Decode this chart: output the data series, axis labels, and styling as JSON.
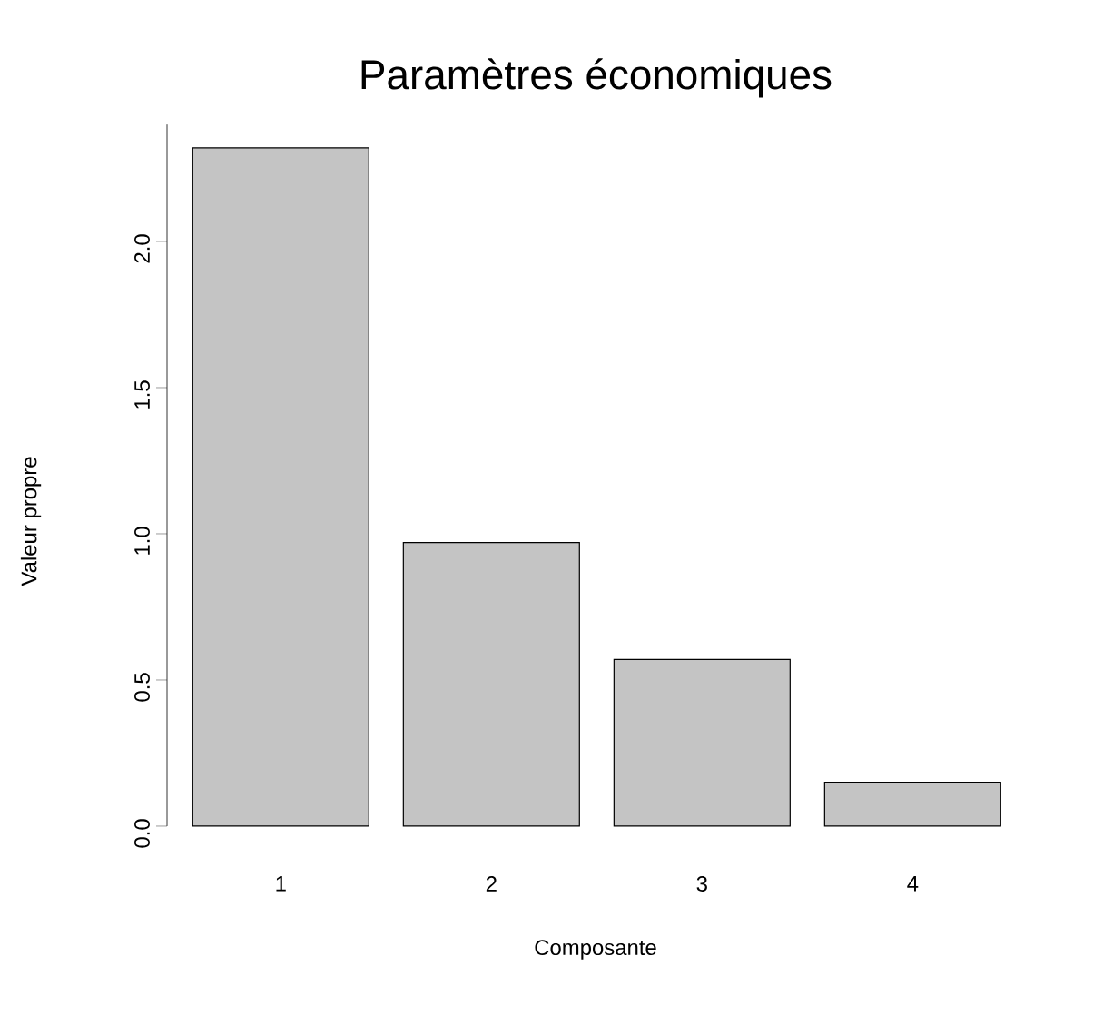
{
  "chart_data": {
    "type": "bar",
    "title": "Paramètres économiques",
    "xlabel": "Composante",
    "ylabel": "Valeur propre",
    "categories": [
      "1",
      "2",
      "3",
      "4"
    ],
    "values": [
      2.32,
      0.97,
      0.57,
      0.15
    ],
    "color": "#c4c4c4",
    "ylim": [
      0,
      2.4
    ],
    "yticks": [
      {
        "value": 0,
        "label": "0.0"
      },
      {
        "value": 0.5,
        "label": "0.5"
      },
      {
        "value": 1,
        "label": "1.0"
      },
      {
        "value": 1.5,
        "label": "1.5"
      },
      {
        "value": 2,
        "label": "2.0"
      }
    ],
    "grid": false
  }
}
